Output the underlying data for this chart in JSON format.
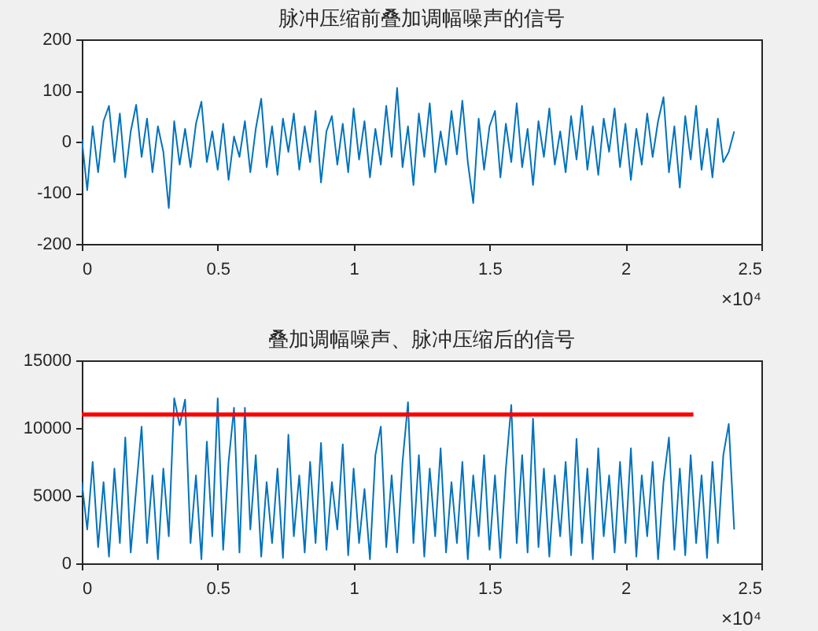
{
  "chart_data": [
    {
      "type": "line",
      "title": "脉冲压缩前叠加调幅噪声的信号",
      "x": [
        0,
        0.02,
        0.04,
        0.06,
        0.08,
        0.1,
        0.12,
        0.14,
        0.16,
        0.18,
        0.2,
        0.22,
        0.24,
        0.26,
        0.28,
        0.3,
        0.32,
        0.34,
        0.36,
        0.38,
        0.4,
        0.42,
        0.44,
        0.46,
        0.48,
        0.5,
        0.52,
        0.54,
        0.56,
        0.58,
        0.6,
        0.62,
        0.64,
        0.66,
        0.68,
        0.7,
        0.72,
        0.74,
        0.76,
        0.78,
        0.8,
        0.82,
        0.84,
        0.86,
        0.88,
        0.9,
        0.92,
        0.94,
        0.96,
        0.98,
        1,
        1.02,
        1.04,
        1.06,
        1.08,
        1.1,
        1.12,
        1.14,
        1.16,
        1.18,
        1.2,
        1.22,
        1.24,
        1.26,
        1.28,
        1.3,
        1.32,
        1.34,
        1.36,
        1.38,
        1.4,
        1.42,
        1.44,
        1.46,
        1.48,
        1.5,
        1.52,
        1.54,
        1.56,
        1.58,
        1.6,
        1.62,
        1.64,
        1.66,
        1.68,
        1.7,
        1.72,
        1.74,
        1.76,
        1.78,
        1.8,
        1.82,
        1.84,
        1.86,
        1.88,
        1.9,
        1.92,
        1.94,
        1.96,
        1.98,
        2,
        2.02,
        2.04,
        2.06,
        2.08,
        2.1,
        2.12,
        2.14,
        2.16,
        2.18,
        2.2,
        2.22,
        2.24,
        2.26,
        2.28,
        2.3,
        2.32,
        2.34,
        2.36,
        2.38,
        2.4
      ],
      "series": [
        {
          "color": "#0072bd",
          "values": [
            5,
            -95,
            30,
            -60,
            40,
            70,
            -40,
            55,
            -70,
            20,
            72,
            -30,
            45,
            -60,
            30,
            -20,
            -130,
            40,
            -45,
            25,
            -50,
            35,
            78,
            -40,
            20,
            -55,
            35,
            -75,
            10,
            -30,
            40,
            -60,
            25,
            84,
            -50,
            30,
            -65,
            45,
            -20,
            55,
            -55,
            30,
            -40,
            60,
            -80,
            20,
            50,
            -45,
            35,
            -60,
            65,
            -35,
            40,
            -70,
            25,
            -45,
            70,
            -30,
            105,
            -50,
            30,
            -85,
            55,
            -30,
            75,
            -60,
            20,
            -45,
            60,
            -25,
            80,
            -40,
            -120,
            45,
            -55,
            30,
            60,
            -70,
            35,
            -40,
            75,
            -50,
            25,
            -85,
            40,
            -30,
            65,
            -45,
            20,
            -60,
            50,
            -35,
            70,
            -55,
            30,
            -65,
            45,
            -20,
            65,
            -50,
            35,
            -75,
            25,
            -45,
            55,
            -30,
            40,
            87,
            -60,
            30,
            -90,
            50,
            -35,
            70,
            -55,
            25,
            -70,
            45,
            -40,
            -20,
            20
          ]
        }
      ],
      "xlim": [
        0,
        2.5
      ],
      "xticks": [
        0,
        0.5,
        1,
        1.5,
        2,
        2.5
      ],
      "ylim": [
        -200,
        200
      ],
      "yticks": [
        -200,
        -100,
        0,
        100,
        200
      ],
      "annotations": [
        "×10⁴"
      ]
    },
    {
      "type": "line",
      "title": "叠加调幅噪声、脉冲压缩后的信号",
      "x": [
        0,
        0.02,
        0.04,
        0.06,
        0.08,
        0.1,
        0.12,
        0.14,
        0.16,
        0.18,
        0.2,
        0.22,
        0.24,
        0.26,
        0.28,
        0.3,
        0.32,
        0.34,
        0.36,
        0.38,
        0.4,
        0.42,
        0.44,
        0.46,
        0.48,
        0.5,
        0.52,
        0.54,
        0.56,
        0.58,
        0.6,
        0.62,
        0.64,
        0.66,
        0.68,
        0.7,
        0.72,
        0.74,
        0.76,
        0.78,
        0.8,
        0.82,
        0.84,
        0.86,
        0.88,
        0.9,
        0.92,
        0.94,
        0.96,
        0.98,
        1,
        1.02,
        1.04,
        1.06,
        1.08,
        1.1,
        1.12,
        1.14,
        1.16,
        1.18,
        1.2,
        1.22,
        1.24,
        1.26,
        1.28,
        1.3,
        1.32,
        1.34,
        1.36,
        1.38,
        1.4,
        1.42,
        1.44,
        1.46,
        1.48,
        1.5,
        1.52,
        1.54,
        1.56,
        1.58,
        1.6,
        1.62,
        1.64,
        1.66,
        1.68,
        1.7,
        1.72,
        1.74,
        1.76,
        1.78,
        1.8,
        1.82,
        1.84,
        1.86,
        1.88,
        1.9,
        1.92,
        1.94,
        1.96,
        1.98,
        2,
        2.02,
        2.04,
        2.06,
        2.08,
        2.1,
        2.12,
        2.14,
        2.16,
        2.18,
        2.2,
        2.22,
        2.24,
        2.26,
        2.28,
        2.3,
        2.32,
        2.34,
        2.36,
        2.38,
        2.4
      ],
      "series": [
        {
          "color": "#0072bd",
          "values": [
            6000,
            2500,
            7500,
            1200,
            6000,
            500,
            7000,
            1500,
            9300,
            800,
            5500,
            10100,
            1500,
            6500,
            300,
            7000,
            2000,
            12200,
            10200,
            12100,
            1500,
            6500,
            300,
            9000,
            2000,
            12200,
            1000,
            7500,
            11500,
            800,
            11500,
            2500,
            8000,
            500,
            6000,
            1500,
            7000,
            400,
            9500,
            2000,
            6500,
            800,
            7500,
            1500,
            8900,
            1000,
            6000,
            2500,
            8800,
            600,
            7000,
            1500,
            5500,
            300,
            8000,
            10100,
            1200,
            6500,
            800,
            7500,
            11900,
            1500,
            8000,
            500,
            7000,
            2000,
            8500,
            800,
            6000,
            1500,
            7500,
            300,
            6500,
            2000,
            8000,
            1000,
            6500,
            400,
            7000,
            11700,
            1500,
            8000,
            800,
            10700,
            1200,
            7000,
            500,
            6500,
            2000,
            7500,
            600,
            9200,
            1500,
            7000,
            300,
            8500,
            2000,
            6500,
            800,
            7500,
            1500,
            8500,
            500,
            6500,
            2000,
            7500,
            300,
            6000,
            9300,
            1000,
            7000,
            600,
            8000,
            1500,
            6500,
            400,
            7500,
            1500,
            8000,
            10300,
            2500
          ]
        },
        {
          "type": "line",
          "color": "#ff0000",
          "x": [
            0,
            2.25
          ],
          "values": [
            11000,
            11000
          ]
        }
      ],
      "xlim": [
        0,
        2.5
      ],
      "xticks": [
        0,
        0.5,
        1,
        1.5,
        2,
        2.5
      ],
      "ylim": [
        0,
        15000
      ],
      "yticks": [
        0,
        5000,
        10000,
        15000
      ],
      "annotations": [
        "×10⁴"
      ]
    }
  ]
}
